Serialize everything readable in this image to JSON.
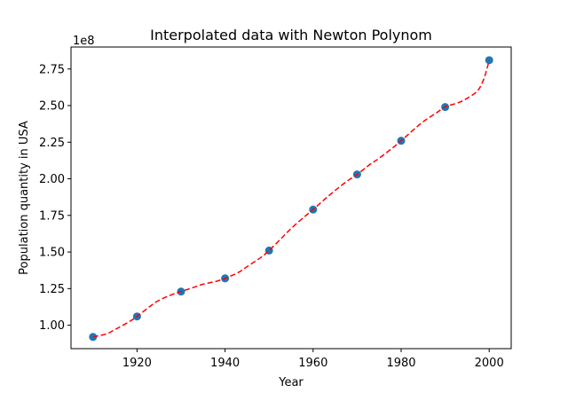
{
  "chart_data": {
    "type": "scatter",
    "title": "Interpolated data with Newton Polynom",
    "xlabel": "Year",
    "ylabel": "Population quantity in USA",
    "y_offset_label": "1e8",
    "xlim": [
      1905,
      2005
    ],
    "ylim": [
      0.84,
      2.9
    ],
    "y_scale_factor": 100000000,
    "xticks": [
      1920,
      1940,
      1960,
      1980,
      2000
    ],
    "yticks": [
      "1.00",
      "1.25",
      "1.50",
      "1.75",
      "2.00",
      "2.25",
      "2.50",
      "2.75"
    ],
    "grid": false,
    "legend": "none",
    "series": [
      {
        "kind": "points",
        "color": "#1f77b4",
        "x": [
          1910,
          1920,
          1930,
          1940,
          1950,
          1960,
          1970,
          1980,
          1990,
          2000
        ],
        "y": [
          0.92,
          1.06,
          1.23,
          1.32,
          1.51,
          1.79,
          2.03,
          2.26,
          2.49,
          2.81
        ]
      },
      {
        "kind": "curve",
        "color": "#ff0000",
        "style": "dashed",
        "x": [
          1910,
          1913,
          1915,
          1918,
          1920,
          1923,
          1925,
          1928,
          1930,
          1933,
          1935,
          1938,
          1940,
          1943,
          1945,
          1948,
          1950,
          1953,
          1955,
          1958,
          1960,
          1963,
          1965,
          1968,
          1970,
          1973,
          1975,
          1978,
          1980,
          1983,
          1985,
          1988,
          1990,
          1993,
          1995,
          1997,
          1998,
          1999,
          2000
        ],
        "y": [
          0.92,
          0.94,
          0.97,
          1.02,
          1.06,
          1.13,
          1.17,
          1.21,
          1.23,
          1.26,
          1.28,
          1.3,
          1.32,
          1.36,
          1.4,
          1.46,
          1.51,
          1.6,
          1.66,
          1.74,
          1.79,
          1.87,
          1.92,
          1.99,
          2.03,
          2.1,
          2.14,
          2.21,
          2.26,
          2.34,
          2.39,
          2.45,
          2.49,
          2.52,
          2.55,
          2.59,
          2.63,
          2.7,
          2.81
        ]
      }
    ]
  }
}
